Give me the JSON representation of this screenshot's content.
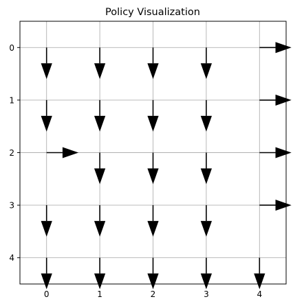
{
  "chart_data": {
    "type": "quiver",
    "title": "Policy Visualization",
    "xlabel": "",
    "ylabel": "",
    "x_ticks": [
      "0",
      "1",
      "2",
      "3",
      "4"
    ],
    "y_ticks": [
      "0",
      "1",
      "2",
      "3",
      "4"
    ],
    "xlim": [
      -0.5,
      4.5
    ],
    "ylim": [
      4.5,
      -0.5
    ],
    "y_inverted": true,
    "grid": true,
    "arrow_color": "#000000",
    "grid_color": "#b0b0b0",
    "actions": [
      {
        "x": 0,
        "y": 0,
        "dir": "down"
      },
      {
        "x": 1,
        "y": 0,
        "dir": "down"
      },
      {
        "x": 2,
        "y": 0,
        "dir": "down"
      },
      {
        "x": 3,
        "y": 0,
        "dir": "down"
      },
      {
        "x": 4,
        "y": 0,
        "dir": "right"
      },
      {
        "x": 0,
        "y": 1,
        "dir": "down"
      },
      {
        "x": 1,
        "y": 1,
        "dir": "down"
      },
      {
        "x": 2,
        "y": 1,
        "dir": "down"
      },
      {
        "x": 3,
        "y": 1,
        "dir": "down"
      },
      {
        "x": 4,
        "y": 1,
        "dir": "right"
      },
      {
        "x": 0,
        "y": 2,
        "dir": "right"
      },
      {
        "x": 1,
        "y": 2,
        "dir": "down"
      },
      {
        "x": 2,
        "y": 2,
        "dir": "down"
      },
      {
        "x": 3,
        "y": 2,
        "dir": "down"
      },
      {
        "x": 4,
        "y": 2,
        "dir": "right"
      },
      {
        "x": 0,
        "y": 3,
        "dir": "down"
      },
      {
        "x": 1,
        "y": 3,
        "dir": "down"
      },
      {
        "x": 2,
        "y": 3,
        "dir": "down"
      },
      {
        "x": 3,
        "y": 3,
        "dir": "down"
      },
      {
        "x": 4,
        "y": 3,
        "dir": "right"
      },
      {
        "x": 0,
        "y": 4,
        "dir": "down"
      },
      {
        "x": 1,
        "y": 4,
        "dir": "down"
      },
      {
        "x": 2,
        "y": 4,
        "dir": "down"
      },
      {
        "x": 3,
        "y": 4,
        "dir": "down"
      },
      {
        "x": 4,
        "y": 4,
        "dir": "down"
      }
    ]
  }
}
